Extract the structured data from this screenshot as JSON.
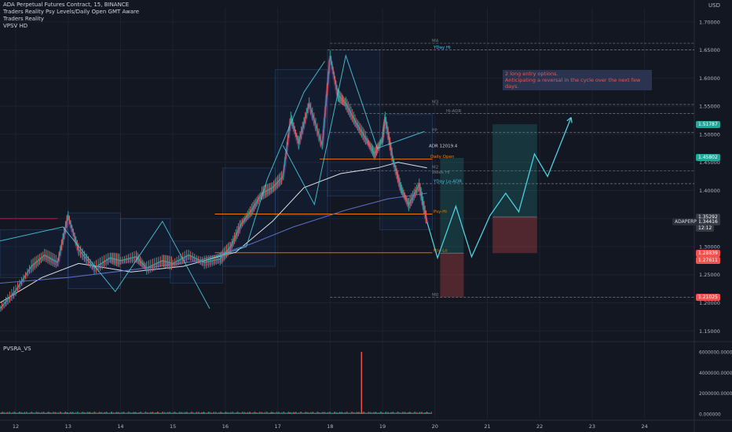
{
  "header": {
    "title": "ADA Perpetual Futures Contract, 15, BINANCE",
    "indicators": [
      "Traders Reality Psy Levels/Daily Open GMT Aware",
      "Traders Reality",
      "VPSV HD"
    ]
  },
  "currency": "USD",
  "note": {
    "line1": "2 long entry options.",
    "line2": "Anticipating a reversal in the cycle over the next few days."
  },
  "volume_pane": {
    "label": "PVSRA_VS",
    "ticks": [
      "6000000.000000",
      "4000000.000000",
      "2000000.000000",
      "0.000000"
    ]
  },
  "level_labels": {
    "m4": "M4",
    "yday_hi": "YDay Hi",
    "m3": "M3",
    "hi_adr": "Hi-ADR",
    "pp": "PP",
    "adr": "ADR 12019.4",
    "daily_open": "Daily Open",
    "m2": "M2",
    "week_hi": "Week Hi",
    "yday_lo": "YDay Lo-ADR",
    "psy_hi": "Psy-Hi",
    "psy_lo": "Psy-Lo",
    "m0": "M0"
  },
  "price_tags": [
    {
      "text": "1.51787",
      "price": 1.51787,
      "color": "#26a69a"
    },
    {
      "text": "1.45802",
      "price": 1.45802,
      "color": "#26a69a"
    },
    {
      "text": "1.35292",
      "price": 1.35292,
      "color": "#363a45"
    },
    {
      "text": "1.34416",
      "price": 1.34416,
      "color": "#363a45"
    },
    {
      "text": "12:12",
      "price": 1.3335,
      "color": "#363a45"
    },
    {
      "text": "1.28839",
      "price": 1.28839,
      "color": "#ef5350"
    },
    {
      "text": "1.27611",
      "price": 1.27611,
      "color": "#ef5350"
    },
    {
      "text": "1.21025",
      "price": 1.21025,
      "color": "#ef5350"
    }
  ],
  "symbol_tag": {
    "text": "ADAPERP",
    "price": 1.34416
  },
  "chart_data": {
    "type": "candlestick",
    "title": "ADA Perpetual Futures Contract, 15, BINANCE",
    "y_ticks": [
      1.7,
      1.65,
      1.6,
      1.55,
      1.5,
      1.45,
      1.4,
      1.35,
      1.3,
      1.25,
      1.2,
      1.15
    ],
    "y_tick_labels": [
      "1.70000",
      "1.65000",
      "1.60000",
      "1.55000",
      "1.50000",
      "1.45000",
      "1.40000",
      "1.35000",
      "1.30000",
      "1.25000",
      "1.20000",
      "1.15000"
    ],
    "ylim": [
      1.135,
      1.725
    ],
    "x_ticks": [
      "12",
      "13",
      "14",
      "15",
      "16",
      "17",
      "18",
      "19",
      "20",
      "21",
      "22",
      "23",
      "24"
    ],
    "xlim": [
      11.7,
      24.95
    ],
    "price_path": [
      [
        11.7,
        1.19
      ],
      [
        12.0,
        1.222
      ],
      [
        12.3,
        1.265
      ],
      [
        12.55,
        1.285
      ],
      [
        12.8,
        1.272
      ],
      [
        13.0,
        1.355
      ],
      [
        13.2,
        1.295
      ],
      [
        13.5,
        1.262
      ],
      [
        13.8,
        1.28
      ],
      [
        14.0,
        1.275
      ],
      [
        14.3,
        1.282
      ],
      [
        14.5,
        1.262
      ],
      [
        14.8,
        1.275
      ],
      [
        15.0,
        1.27
      ],
      [
        15.3,
        1.285
      ],
      [
        15.6,
        1.272
      ],
      [
        15.9,
        1.278
      ],
      [
        16.1,
        1.3
      ],
      [
        16.3,
        1.34
      ],
      [
        16.5,
        1.365
      ],
      [
        16.7,
        1.395
      ],
      [
        16.9,
        1.405
      ],
      [
        17.1,
        1.425
      ],
      [
        17.25,
        1.53
      ],
      [
        17.4,
        1.485
      ],
      [
        17.6,
        1.555
      ],
      [
        17.85,
        1.48
      ],
      [
        18.0,
        1.64
      ],
      [
        18.15,
        1.57
      ],
      [
        18.3,
        1.555
      ],
      [
        18.5,
        1.52
      ],
      [
        18.7,
        1.49
      ],
      [
        18.85,
        1.465
      ],
      [
        19.0,
        1.492
      ],
      [
        19.05,
        1.53
      ],
      [
        19.2,
        1.455
      ],
      [
        19.35,
        1.405
      ],
      [
        19.5,
        1.375
      ],
      [
        19.7,
        1.41
      ],
      [
        19.85,
        1.345
      ]
    ],
    "forecast_path": [
      [
        19.85,
        1.344
      ],
      [
        20.05,
        1.28
      ],
      [
        20.4,
        1.372
      ],
      [
        20.7,
        1.282
      ],
      [
        21.05,
        1.355
      ],
      [
        21.35,
        1.395
      ],
      [
        21.6,
        1.362
      ],
      [
        21.9,
        1.465
      ],
      [
        22.15,
        1.425
      ],
      [
        22.6,
        1.53
      ]
    ],
    "positions": [
      {
        "side": "long",
        "x_start": 20.1,
        "x_end": 20.55,
        "entry": 1.28839,
        "target": 1.45802,
        "stop": 1.21025
      },
      {
        "side": "long",
        "x_start": 21.1,
        "x_end": 21.95,
        "entry": 1.35292,
        "target": 1.51787,
        "stop": 1.28839
      }
    ],
    "levels": [
      {
        "name": "M4",
        "price": 1.662,
        "x_start": 18.0
      },
      {
        "name": "YDay Hi",
        "price": 1.65,
        "x_start": 17.95
      },
      {
        "name": "M3",
        "price": 1.553,
        "x_start": 18.0
      },
      {
        "name": "Hi-ADR",
        "price": 1.537,
        "x_start": 18.6
      },
      {
        "name": "PP",
        "price": 1.503,
        "x_start": 18.0
      },
      {
        "name": "Daily Open",
        "price": 1.456,
        "x_start": 17.8
      },
      {
        "name": "M2",
        "price": 1.435,
        "x_start": 18.0
      },
      {
        "name": "YDay Lo-ADR",
        "price": 1.412,
        "x_start": 19.6
      },
      {
        "name": "Psy-Hi",
        "price": 1.358,
        "x_start": 15.8
      },
      {
        "name": "Psy-Lo",
        "price": 1.289,
        "x_start": 15.8
      },
      {
        "name": "M0",
        "price": 1.21,
        "x_start": 18.0
      }
    ],
    "volume_spike": {
      "x": 18.6,
      "value": 6000000
    }
  }
}
